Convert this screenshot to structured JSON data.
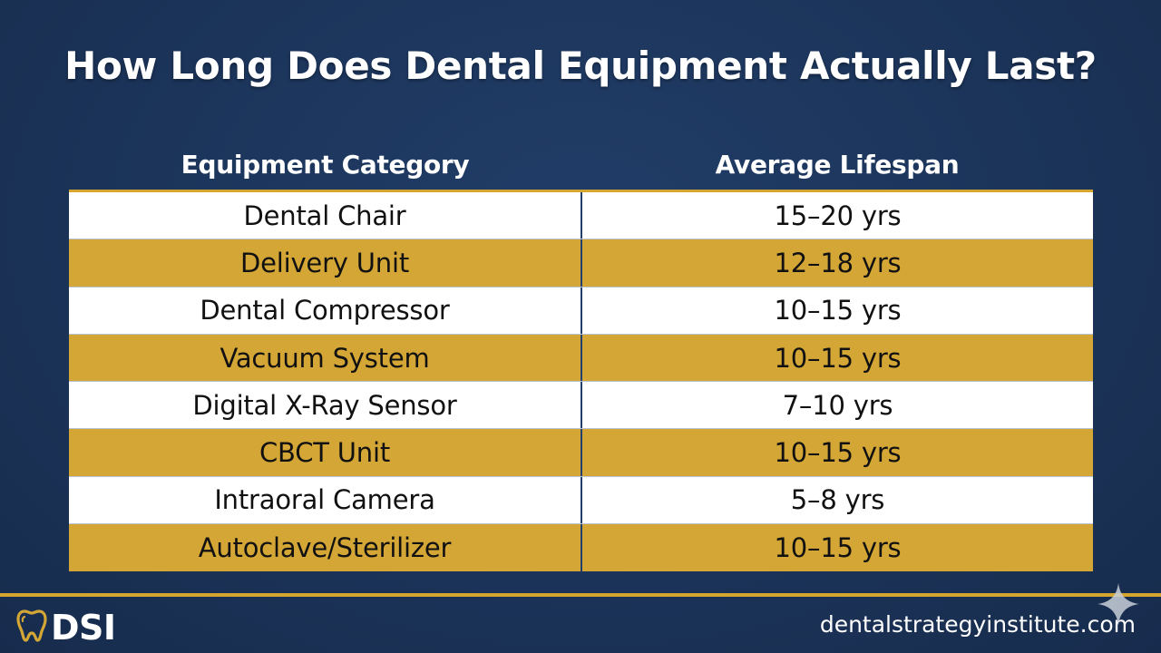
{
  "title": "How Long Does Dental Equipment Actually Last?",
  "table": {
    "headers": [
      "Equipment Category",
      "Average Lifespan"
    ],
    "rows": [
      [
        "Dental Chair",
        "15–20 yrs"
      ],
      [
        "Delivery Unit",
        "12–18 yrs"
      ],
      [
        "Dental Compressor",
        "10–15 yrs"
      ],
      [
        "Vacuum System",
        "10–15 yrs"
      ],
      [
        "Digital X-Ray Sensor",
        "7–10 yrs"
      ],
      [
        "CBCT Unit",
        "10–15 yrs"
      ],
      [
        "Intraoral Camera",
        "5–8 yrs"
      ],
      [
        "Autoclave/Sterilizer",
        "10–15 yrs"
      ]
    ]
  },
  "footer": {
    "logo_text": "DSI",
    "logo_icon": "tooth-icon",
    "website": "dentalstrategyinstitute.com",
    "corner_icon": "sparkle-icon"
  },
  "colors": {
    "background": "#1b3358",
    "accent_gold": "#d4a636",
    "row_white": "#ffffff"
  }
}
